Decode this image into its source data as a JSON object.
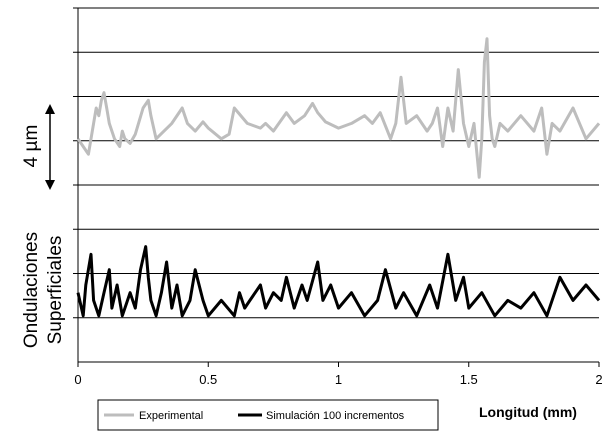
{
  "chart_data": {
    "type": "line",
    "xlim": [
      0,
      2
    ],
    "x_ticks": [
      "0",
      "0.5",
      "1",
      "1.5",
      "2"
    ],
    "xlabel": "Longitud (mm)",
    "ylabel_lines": [
      "Ondulaciones",
      "Superficiales"
    ],
    "scale_bar_label": "4 µm",
    "grid": true,
    "legend_position": "bottom-left",
    "series": [
      {
        "name": "Experimental",
        "color": "#bdbdbd",
        "x": [
          0,
          0.02,
          0.04,
          0.06,
          0.07,
          0.08,
          0.09,
          0.1,
          0.11,
          0.12,
          0.14,
          0.16,
          0.17,
          0.18,
          0.2,
          0.22,
          0.25,
          0.27,
          0.28,
          0.3,
          0.33,
          0.36,
          0.4,
          0.42,
          0.45,
          0.48,
          0.5,
          0.55,
          0.58,
          0.6,
          0.65,
          0.7,
          0.72,
          0.75,
          0.8,
          0.83,
          0.87,
          0.9,
          0.92,
          0.95,
          1.0,
          1.05,
          1.1,
          1.13,
          1.16,
          1.2,
          1.22,
          1.24,
          1.26,
          1.3,
          1.34,
          1.36,
          1.38,
          1.4,
          1.42,
          1.44,
          1.46,
          1.48,
          1.5,
          1.52,
          1.54,
          1.55,
          1.56,
          1.57,
          1.58,
          1.59,
          1.6,
          1.62,
          1.65,
          1.7,
          1.75,
          1.78,
          1.8,
          1.82,
          1.85,
          1.9,
          1.95,
          2.0
        ],
        "y": [
          0.5,
          0.0,
          -0.5,
          1.5,
          2.5,
          2.0,
          3.0,
          3.5,
          2.5,
          1.5,
          0.5,
          0.0,
          1.0,
          0.5,
          0.2,
          0.8,
          2.5,
          3.0,
          2.0,
          0.5,
          1.0,
          1.5,
          2.5,
          1.5,
          1.0,
          1.6,
          1.2,
          0.5,
          0.8,
          2.5,
          1.5,
          1.2,
          1.5,
          1.0,
          2.2,
          1.5,
          2.0,
          2.8,
          2.2,
          1.6,
          1.2,
          1.5,
          2.0,
          1.5,
          2.2,
          0.5,
          1.5,
          4.5,
          1.5,
          2.0,
          1.0,
          1.5,
          2.5,
          0.0,
          2.5,
          1.0,
          5.0,
          1.5,
          0.0,
          1.5,
          -2.0,
          0.5,
          5.5,
          7.0,
          2.0,
          0.5,
          0.0,
          1.5,
          1.0,
          2.0,
          1.0,
          2.5,
          -0.5,
          1.5,
          1.0,
          2.5,
          0.5,
          1.5
        ]
      },
      {
        "name": "Simulación 100 incrementos",
        "color": "#000000",
        "x": [
          0,
          0.02,
          0.03,
          0.05,
          0.06,
          0.08,
          0.1,
          0.12,
          0.13,
          0.15,
          0.17,
          0.2,
          0.22,
          0.24,
          0.26,
          0.27,
          0.28,
          0.3,
          0.32,
          0.34,
          0.36,
          0.38,
          0.4,
          0.43,
          0.45,
          0.48,
          0.5,
          0.55,
          0.6,
          0.62,
          0.64,
          0.66,
          0.7,
          0.72,
          0.75,
          0.78,
          0.8,
          0.83,
          0.86,
          0.88,
          0.92,
          0.94,
          0.97,
          1.0,
          1.05,
          1.1,
          1.15,
          1.18,
          1.22,
          1.25,
          1.3,
          1.35,
          1.38,
          1.42,
          1.45,
          1.48,
          1.5,
          1.55,
          1.6,
          1.65,
          1.7,
          1.75,
          1.8,
          1.85,
          1.9,
          1.95,
          2.0
        ],
        "y": [
          -9.5,
          -11.0,
          -9.0,
          -7.0,
          -10.0,
          -11.0,
          -9.5,
          -8.0,
          -10.5,
          -9.0,
          -11.0,
          -9.5,
          -10.5,
          -8.0,
          -6.5,
          -8.5,
          -10.0,
          -11.0,
          -9.5,
          -7.5,
          -10.5,
          -9.0,
          -11.0,
          -10.0,
          -8.0,
          -10.0,
          -11.0,
          -10.0,
          -11.0,
          -9.5,
          -10.5,
          -10.0,
          -9.0,
          -10.5,
          -9.5,
          -10.0,
          -8.5,
          -10.5,
          -9.0,
          -10.0,
          -7.5,
          -10.0,
          -9.0,
          -10.5,
          -9.5,
          -11.0,
          -10.0,
          -8.0,
          -10.5,
          -9.5,
          -11.0,
          -9.0,
          -10.5,
          -7.0,
          -10.0,
          -8.5,
          -10.5,
          -9.5,
          -11.0,
          -10.0,
          -10.5,
          -9.5,
          -11.0,
          -8.5,
          -10.0,
          -9.0,
          -10.0
        ]
      }
    ]
  }
}
